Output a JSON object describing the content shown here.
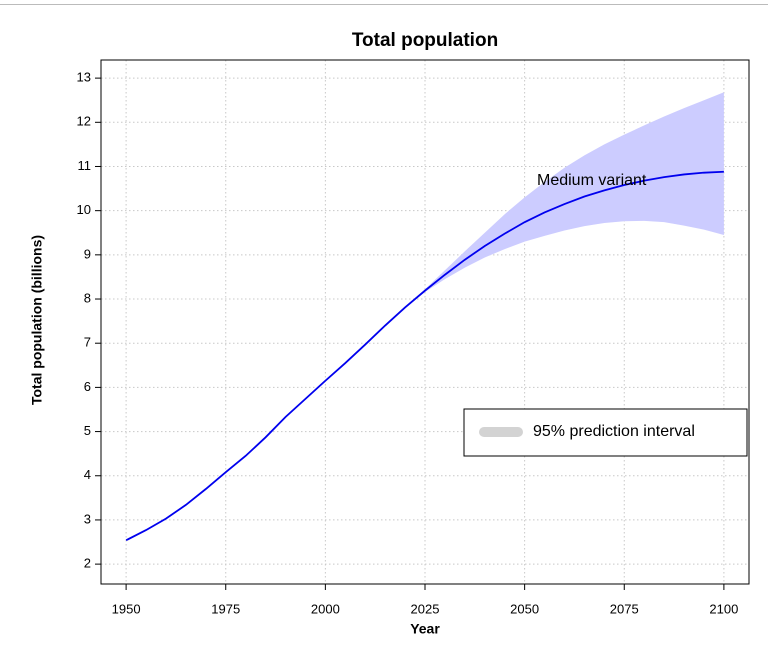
{
  "chart_data": {
    "type": "line",
    "title": "Total population",
    "x_label": "Year",
    "y_label": "Total population (billions)",
    "x": [
      1950,
      1955,
      1960,
      1965,
      1970,
      1975,
      1980,
      1985,
      1990,
      1995,
      2000,
      2005,
      2010,
      2015,
      2020,
      2025,
      2030,
      2035,
      2040,
      2045,
      2050,
      2055,
      2060,
      2065,
      2070,
      2075,
      2080,
      2085,
      2090,
      2095,
      2100
    ],
    "series": [
      {
        "name": "Medium variant",
        "color": "#0000ee",
        "values": [
          2.54,
          2.77,
          3.03,
          3.34,
          3.7,
          4.08,
          4.45,
          4.87,
          5.33,
          5.74,
          6.15,
          6.55,
          6.97,
          7.4,
          7.81,
          8.19,
          8.55,
          8.89,
          9.2,
          9.48,
          9.74,
          9.96,
          10.15,
          10.32,
          10.46,
          10.58,
          10.68,
          10.76,
          10.82,
          10.86,
          10.88
        ]
      }
    ],
    "band": {
      "name": "95% prediction interval",
      "color": "#ccccff",
      "x": [
        2020,
        2025,
        2030,
        2035,
        2040,
        2045,
        2050,
        2055,
        2060,
        2065,
        2070,
        2075,
        2080,
        2085,
        2090,
        2095,
        2100
      ],
      "upper": [
        7.81,
        8.22,
        8.65,
        9.08,
        9.5,
        9.92,
        10.3,
        10.65,
        10.97,
        11.25,
        11.5,
        11.72,
        11.93,
        12.13,
        12.32,
        12.5,
        12.68
      ],
      "lower": [
        7.81,
        8.16,
        8.45,
        8.71,
        8.94,
        9.13,
        9.3,
        9.43,
        9.55,
        9.65,
        9.72,
        9.76,
        9.77,
        9.74,
        9.66,
        9.57,
        9.45
      ]
    },
    "xlim": [
      1943.7,
      2106.3
    ],
    "ylim": [
      1.55,
      13.41
    ],
    "xticks": [
      1950,
      1975,
      2000,
      2025,
      2050,
      2075,
      2100
    ],
    "yticks": [
      2,
      3,
      4,
      5,
      6,
      7,
      8,
      9,
      10,
      11,
      12,
      13
    ],
    "grid": true
  }
}
